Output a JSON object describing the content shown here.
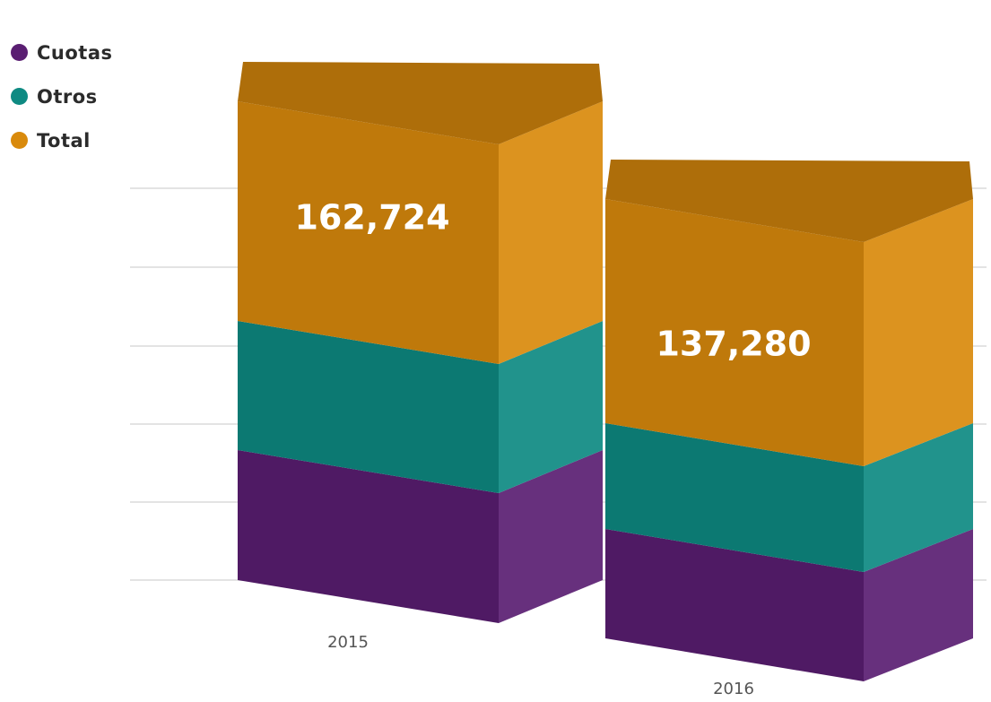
{
  "chart_data": {
    "type": "bar",
    "stacked": true,
    "categories": [
      "2015",
      "2016"
    ],
    "series": [
      {
        "name": "Cuotas",
        "color": "#5a1e72",
        "values": [
          null,
          null
        ]
      },
      {
        "name": "Otros",
        "color": "#0e8a82",
        "values": [
          null,
          null
        ]
      },
      {
        "name": "Total",
        "color": "#d98a0c",
        "values": [
          162724,
          137280
        ]
      }
    ],
    "data_labels": [
      "162,724",
      "137,280"
    ],
    "legend_position": "top-left",
    "grid": true,
    "three_d": true
  }
}
